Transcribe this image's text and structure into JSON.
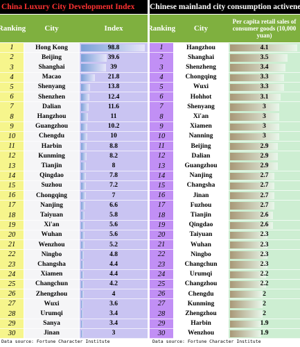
{
  "colors": {
    "header_green": "#7fb03f",
    "left_rank_bg": "#f6f58c",
    "left_city_bg": "#f5f5f7",
    "left_val_bg": "#c9c4f2",
    "right_rank_bg": "#c18ff5",
    "right_city_bg": "#ffffff",
    "right_val_bg": "#cdeed2",
    "title_left_color": "#ff3232",
    "bar_left": "#7aa0d8",
    "bar_right": "#a89877"
  },
  "left": {
    "title": "China Luxury City Development Index",
    "headers": {
      "rank": "Ranking",
      "city": "City",
      "value": "Index"
    },
    "footer": "Data source: Fortune Character Institute"
  },
  "right": {
    "title": "Chinese mainland city consumption activeness",
    "headers": {
      "rank": "Ranking",
      "city": "City",
      "value": "Per capita retail sales of consumer goods (10,000 yuan)"
    },
    "footer": "Data source: Fortune Character Institute"
  },
  "chart_data": [
    {
      "type": "table",
      "title": "China Luxury City Development Index",
      "columns": [
        "Ranking",
        "City",
        "Index"
      ],
      "ranks": [
        "1",
        "2",
        "3",
        "4",
        "5",
        "6",
        "7",
        "8",
        "9",
        "10",
        "11",
        "12",
        "13",
        "14",
        "15",
        "16",
        "17",
        "18",
        "19",
        "20",
        "21",
        "22",
        "23",
        "24",
        "25",
        "26",
        "27",
        "28",
        "29",
        "30"
      ],
      "cities": [
        "Hong Kong",
        "Beijing",
        "Shanghai",
        "Macao",
        "Shenyang",
        "Shenzhen",
        "Dalian",
        "Hangzhou",
        "Guangzhou",
        "Chengdu",
        "Harbin",
        "Kunming",
        "Tianjin",
        "Qingdao",
        "Suzhou",
        "Chongqing",
        "Nanjing",
        "Taiyuan",
        "Xi'an",
        "Wuhan",
        "Wenzhou",
        "Ningbo",
        "Changsha",
        "Xiamen",
        "Changchun",
        "Zhengzhou",
        "Wuxi",
        "Urumqi",
        "Sanya",
        "Jinan"
      ],
      "values": [
        98.8,
        39.6,
        39,
        21.8,
        13.8,
        12.4,
        11.6,
        11,
        10.2,
        10,
        8.8,
        8.2,
        8,
        7.8,
        7.2,
        7,
        6.6,
        5.8,
        5.6,
        5.6,
        5.2,
        4.8,
        4.4,
        4.4,
        4.2,
        4,
        3.6,
        3.4,
        3.4,
        3
      ],
      "value_labels": [
        "98.8",
        "39.6",
        "39",
        "21.8",
        "13.8",
        "12.4",
        "11.6",
        "11",
        "10.2",
        "10",
        "8.8",
        "8.2",
        "8",
        "7.8",
        "7.2",
        "7",
        "6.6",
        "5.8",
        "5.6",
        "5.6",
        "5.2",
        "4.8",
        "4.4",
        "4.4",
        "4.2",
        "4",
        "3.6",
        "3.4",
        "3.4",
        "3"
      ],
      "max": 98.8
    },
    {
      "type": "table",
      "title": "Chinese mainland city consumption activeness",
      "columns": [
        "Ranking",
        "City",
        "Per capita retail sales of consumer goods (10,000 yuan)"
      ],
      "ranks": [
        "1",
        "2",
        "3",
        "4",
        "5",
        "6",
        "7",
        "8",
        "9",
        "10",
        "11",
        "12",
        "13",
        "14",
        "15",
        "16",
        "17",
        "18",
        "19",
        "20",
        "21",
        "22",
        "23",
        "24",
        "25",
        "26",
        "27",
        "28",
        "29",
        "30"
      ],
      "cities": [
        "Hangzhou",
        "Shanghai",
        "Shenzheng",
        "Chongqing",
        "Wuxi",
        "Hohhot",
        "Shenyang",
        "Xi'an",
        "Xiamen",
        "Nanning",
        "Beijing",
        "Dalian",
        "Guangzhou",
        "Nanjing",
        "Changsha",
        "Jinan",
        "Fuzhou",
        "Tianjin",
        "Qingdao",
        "Taiyuan",
        "Wuhan",
        "Ningbo",
        "Changchun",
        "Urumqi",
        "Changzhou",
        "Chengdu",
        "Kunming",
        "Zhengzhou",
        "Harbin",
        "Wenzhou"
      ],
      "values": [
        4.1,
        3.5,
        3.4,
        3.3,
        3.3,
        3.1,
        3,
        3,
        3,
        3,
        2.9,
        2.9,
        2.9,
        2.7,
        2.7,
        2.7,
        2.7,
        2.6,
        2.6,
        2.3,
        2.3,
        2.3,
        2.3,
        2.2,
        2.2,
        2,
        2,
        2,
        1.9,
        1.9
      ],
      "value_labels": [
        "4.1",
        "3.5",
        "3.4",
        "3.3",
        "3.3",
        "3.1",
        "3",
        "3",
        "3",
        "3",
        "2.9",
        "2.9",
        "2.9",
        "2.7",
        "2.7",
        "2.7",
        "2.7",
        "2.6",
        "2.6",
        "2.3",
        "2.3",
        "2.3",
        "2.3",
        "2.2",
        "2.2",
        "2",
        "2",
        "2",
        "1.9",
        "1.9"
      ],
      "max": 4.1
    }
  ]
}
